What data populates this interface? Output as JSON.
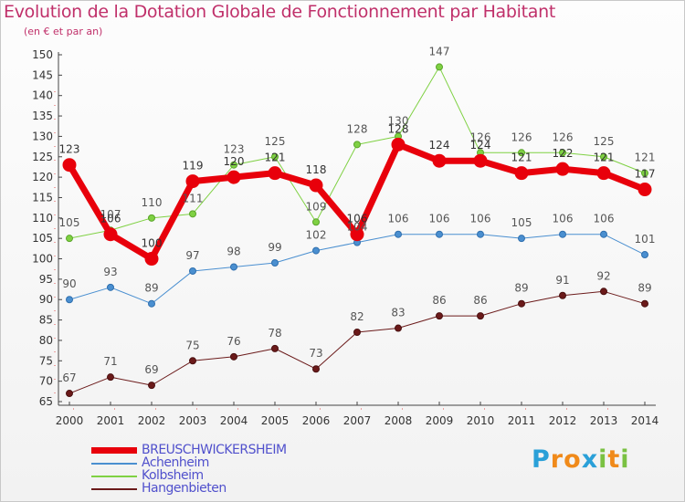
{
  "header": {
    "title": "Evolution de la Dotation Globale de Fonctionnement par Habitant",
    "subtitle": "(en € et par an)"
  },
  "logo": {
    "letters": [
      "P",
      "r",
      "o",
      "x",
      "i",
      "t",
      "i"
    ],
    "colors": [
      "#2aa0d8",
      "#f08a1a",
      "#f08a1a",
      "#2aa0d8",
      "#7ac142",
      "#f08a1a",
      "#7ac142"
    ]
  },
  "chart_data": {
    "type": "line",
    "title": "Evolution de la Dotation Globale de Fonctionnement par Habitant",
    "subtitle": "(en € et par an)",
    "xlabel": "",
    "ylabel": "",
    "ylim": [
      65,
      150
    ],
    "yticks": [
      65,
      70,
      75,
      80,
      85,
      90,
      95,
      100,
      105,
      110,
      115,
      120,
      125,
      130,
      135,
      140,
      145,
      150
    ],
    "categories": [
      "2000",
      "2001",
      "2002",
      "2003",
      "2004",
      "2005",
      "2006",
      "2007",
      "2008",
      "2009",
      "2010",
      "2011",
      "2012",
      "2013",
      "2014"
    ],
    "grid": false,
    "legend_position": "bottom-left",
    "series": [
      {
        "name": "Hangenbieten",
        "color": "#6b1a1a",
        "values": [
          67,
          71,
          69,
          75,
          76,
          78,
          73,
          82,
          83,
          86,
          86,
          89,
          91,
          92,
          89
        ]
      },
      {
        "name": "Achenheim",
        "color": "#4a8fd0",
        "values": [
          90,
          93,
          89,
          97,
          98,
          99,
          102,
          104,
          106,
          106,
          106,
          105,
          106,
          106,
          101
        ]
      },
      {
        "name": "Kolbsheim",
        "color": "#7fd143",
        "values": [
          105,
          107,
          110,
          111,
          123,
          125,
          109,
          128,
          130,
          147,
          126,
          126,
          126,
          125,
          121
        ]
      },
      {
        "name": "BREUSCHWICKERSHEIM",
        "color": "#e8000b",
        "values": [
          123,
          106,
          100,
          119,
          120,
          121,
          118,
          106,
          128,
          124,
          124,
          121,
          122,
          121,
          117
        ]
      }
    ]
  }
}
